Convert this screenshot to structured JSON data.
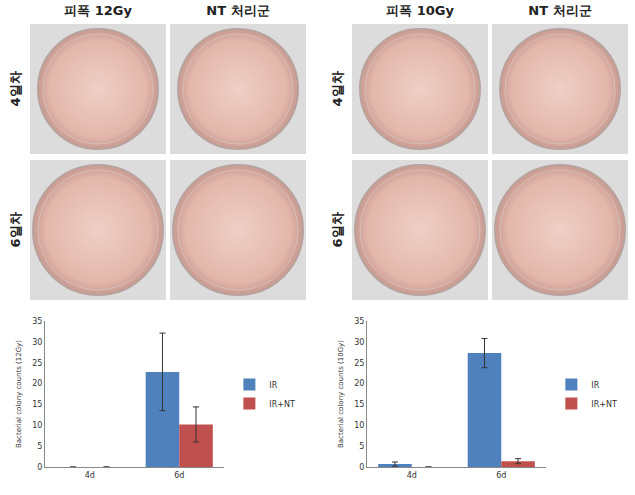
{
  "photos": {
    "groups": [
      {
        "columns": [
          "피폭 12Gy",
          "NT 처리군"
        ],
        "rows": [
          "4일차",
          "6일차"
        ]
      },
      {
        "columns": [
          "피폭 10Gy",
          "NT 처리군"
        ],
        "rows": [
          "4일차",
          "6일차"
        ]
      }
    ]
  },
  "chart_data": [
    {
      "type": "bar",
      "categories": [
        "4d",
        "6d"
      ],
      "y_label": "Bacterial colony counts (12Gy)",
      "ylim": [
        0,
        35
      ],
      "yticks": [
        0,
        5,
        10,
        15,
        20,
        25,
        30,
        35
      ],
      "legend": "right",
      "series": [
        {
          "name": "IR",
          "color": "#4f81bd",
          "values": [
            0,
            22.8
          ],
          "error": [
            0,
            9.3
          ]
        },
        {
          "name": "IR+NT",
          "color": "#c0504d",
          "values": [
            0,
            10.2
          ],
          "error": [
            0,
            4.2
          ]
        }
      ]
    },
    {
      "type": "bar",
      "categories": [
        "4d",
        "6d"
      ],
      "y_label": "Bacterial colony counts (10Gy)",
      "ylim": [
        0,
        35
      ],
      "yticks": [
        0,
        5,
        10,
        15,
        20,
        25,
        30,
        35
      ],
      "legend": "right",
      "series": [
        {
          "name": "IR",
          "color": "#4f81bd",
          "values": [
            0.7,
            27.3
          ],
          "error": [
            0.5,
            3.5
          ]
        },
        {
          "name": "IR+NT",
          "color": "#c0504d",
          "values": [
            0,
            1.4
          ],
          "error": [
            0,
            0.6
          ]
        }
      ]
    }
  ]
}
